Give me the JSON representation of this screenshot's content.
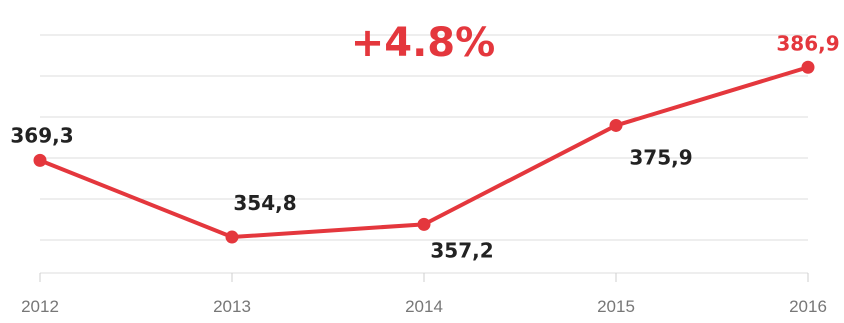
{
  "chart_data": {
    "type": "line",
    "x": [
      "2012",
      "2013",
      "2014",
      "2015",
      "2016"
    ],
    "values": [
      369.3,
      354.8,
      357.2,
      375.9,
      386.9
    ],
    "data_labels": [
      "369,3",
      "354,8",
      "357,2",
      "375,9",
      "386,9"
    ],
    "annotation": "+4.8%",
    "ylim": [
      348,
      393
    ],
    "grid": true,
    "colors": {
      "line": "#e4373d",
      "label": "#222222",
      "highlight_label": "#e4373d",
      "annotation": "#e4373d"
    }
  }
}
